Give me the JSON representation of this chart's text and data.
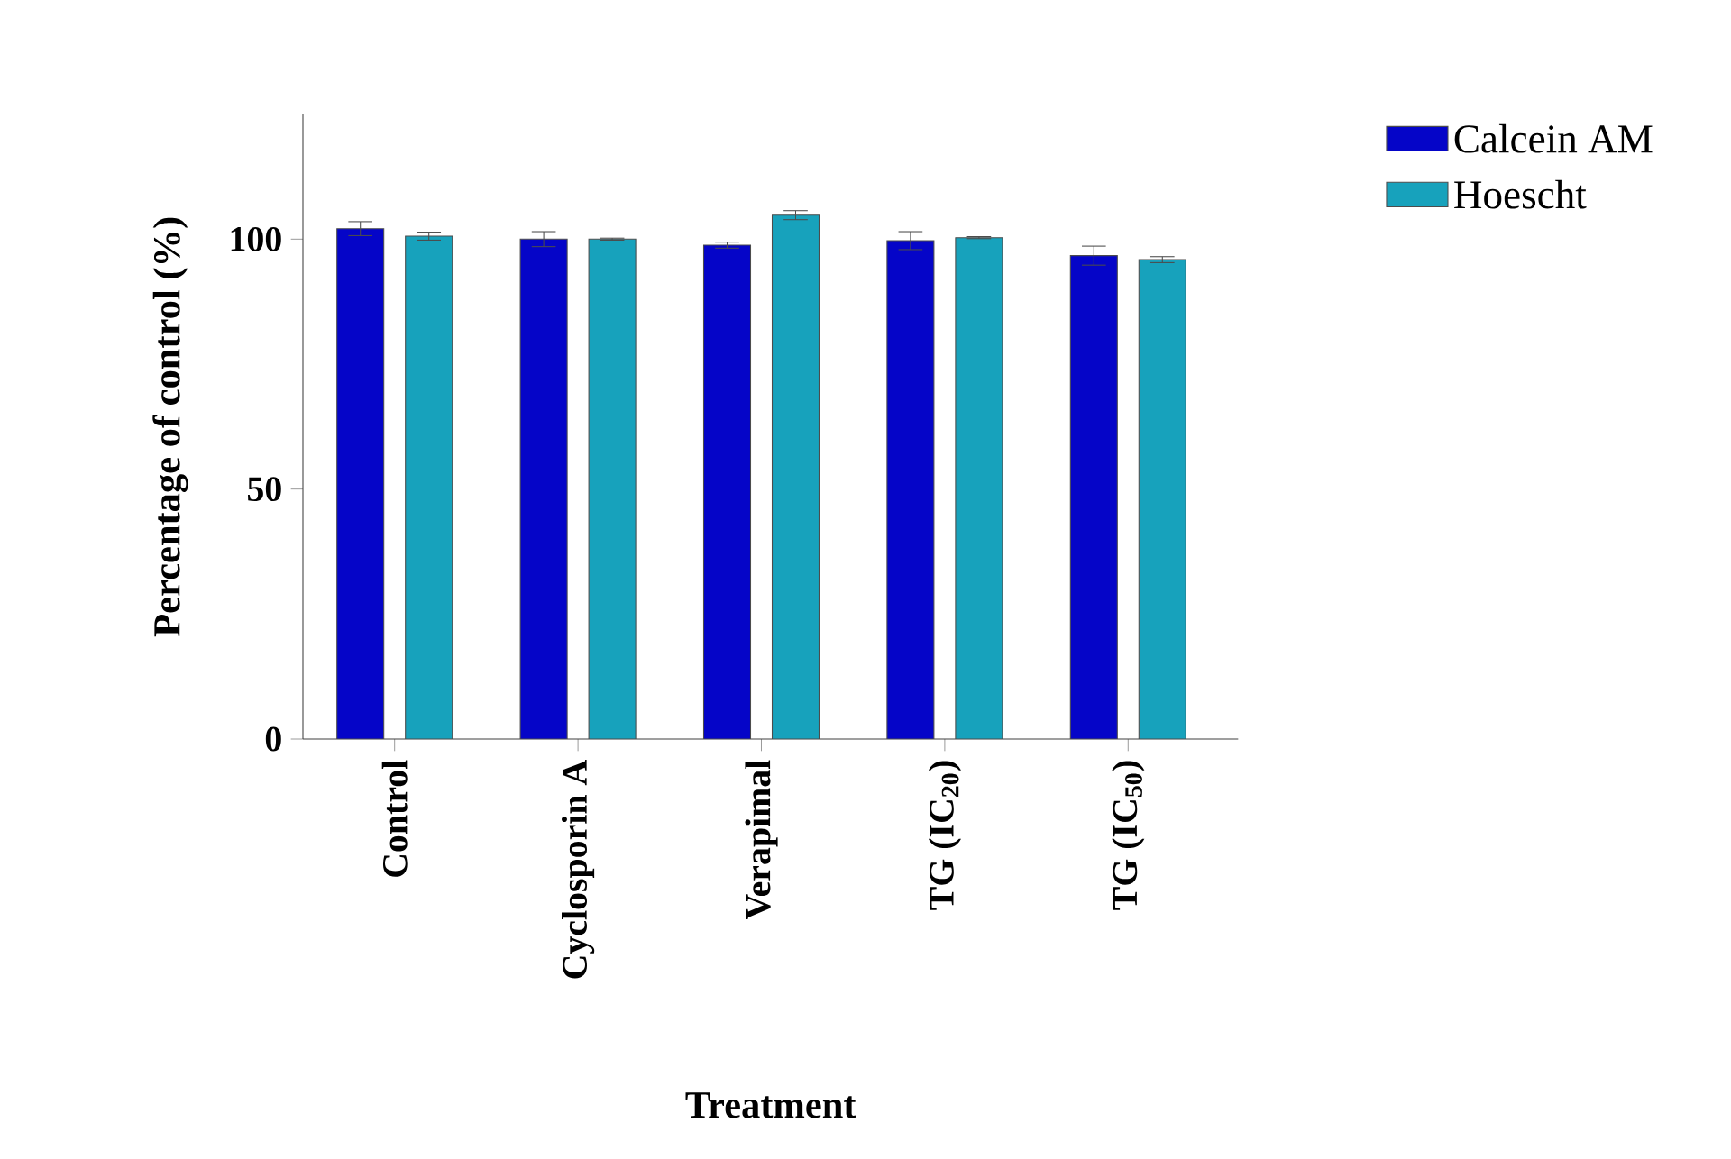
{
  "chart_data": {
    "type": "bar",
    "xlabel": "Treatment",
    "ylabel": "Percentage of control (%)",
    "categories": [
      "Control",
      "Cyclosporin A",
      "Verapimal",
      "TG (IC$_{20}$)",
      "TG (IC$_{50}$)"
    ],
    "series": [
      {
        "name": "Calcein AM",
        "color": "#0505c8",
        "values": [
          102.1,
          100.0,
          98.8,
          99.7,
          96.7
        ],
        "errors": [
          1.4,
          1.5,
          0.6,
          1.8,
          1.9
        ]
      },
      {
        "name": "Hoescht",
        "color": "#17a2bc",
        "values": [
          100.6,
          100.0,
          104.8,
          100.3,
          95.9
        ],
        "errors": [
          0.8,
          0.2,
          0.9,
          0.2,
          0.6
        ]
      }
    ],
    "ylim": [
      0,
      125
    ],
    "yticks": [
      0,
      50,
      100
    ],
    "grid": false,
    "legend": "top right"
  }
}
